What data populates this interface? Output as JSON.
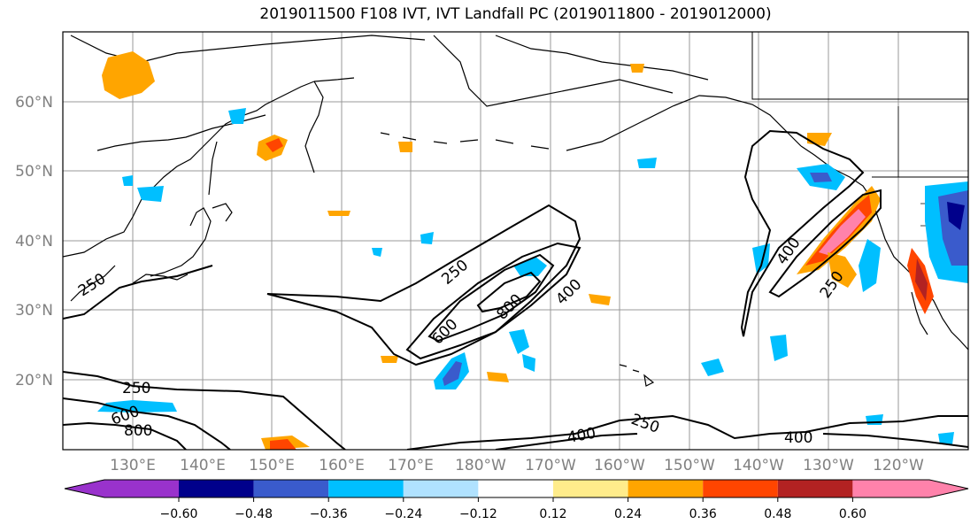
{
  "title": "2019011500 F108 IVT, IVT Landfall PC (2019011800 - 2019012000)",
  "lat_labels": [
    "60°N",
    "50°N",
    "40°N",
    "30°N",
    "20°N"
  ],
  "lon_labels": [
    "130°E",
    "140°E",
    "150°E",
    "160°E",
    "170°E",
    "180°W",
    "170°W",
    "160°W",
    "150°W",
    "140°W",
    "130°W",
    "120°W"
  ],
  "contour_labels": {
    "c250_w": "250",
    "c600_a": "600",
    "c800_a": "800",
    "c400_a": "400",
    "c250_b": "250",
    "c250_sw": "250",
    "c600_sw": "600",
    "c800_sw": "800",
    "c400_s1": "400",
    "c250_s2": "250",
    "c400_s3": "400",
    "c400_e": "400",
    "c250_e": "250"
  },
  "colorbar": {
    "colors": [
      "#9932cc",
      "#00008b",
      "#3a5bcc",
      "#00bfff",
      "#b0e2ff",
      "#ffffff",
      "#ffec8b",
      "#ffa500",
      "#ff4500",
      "#b22222",
      "#ff82ab"
    ],
    "ticks": [
      "−0.60",
      "−0.48",
      "−0.36",
      "−0.24",
      "−0.12",
      "0.12",
      "0.24",
      "0.36",
      "0.48",
      "0.60"
    ]
  }
}
